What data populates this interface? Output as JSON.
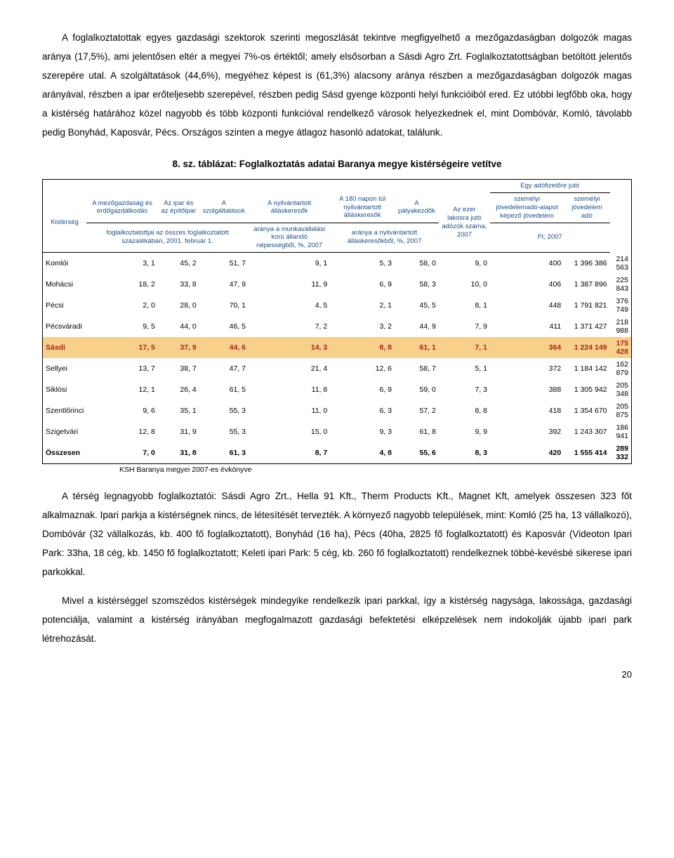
{
  "para1": "A foglalkoztatottak egyes gazdasági szektorok szerinti megoszlását tekintve megfigyelhető a mezőgazdaságban dolgozók magas aránya (17,5%), ami jelentősen eltér a megyei 7%-os értéktől; amely elsősorban a Sásdi Agro Zrt. Foglalkoztatottságban betöltött jelentős szerepére utal. A szolgáltatások (44,6%), megyéhez képest is (61,3%) alacsony aránya részben a mezőgazdaságban dolgozók magas arányával, részben a ipar erőteljesebb szerepével, részben pedig Sásd gyenge központi helyi funkcióiból ered. Ez utóbbi legfőbb oka, hogy a kistérség határához közel nagyobb és több központi funkcióval rendelkező városok helyezkednek el, mint Dombóvár, Komló, távolabb pedig Bonyhád, Kaposvár, Pécs. Országos szinten a megye átlagoz hasonló adatokat, találunk.",
  "caption": "8. sz. táblázat: Foglalkoztatás adatai Baranya megye kistérségeire vetítve",
  "table": {
    "headers": {
      "top_right": "Egy adófizetőre jutó",
      "row1": [
        "Kistérség",
        "A mezőgazdaság és erdőgazdálkodás",
        "Az ipar és az építőipar",
        "A szolgáltatások",
        "A nyilvántartott álláskeresők",
        "A 180 napon túl nyilvántartott álláskeresők",
        "A pályakezdők",
        "Az ezer lakosra jutó adózók száma, 2007",
        "személyi jövedelemadó-alapot képező jövedelem",
        "személyi jövedelem adó"
      ],
      "row2": [
        "foglalkoztatottjai az összes foglalkoztatott százalékában, 2001. február 1.",
        "aránya a munkavállalási korú állandó népességből, %, 2007",
        "aránya a nyilvántartott álláskeresőkből, %, 2007",
        "Ft, 2007"
      ]
    },
    "rows": [
      {
        "k": "Komlói",
        "v": [
          "3, 1",
          "45, 2",
          "51, 7",
          "9, 1",
          "5, 3",
          "58, 0",
          "9, 0",
          "400",
          "1 396 386",
          "214 563"
        ]
      },
      {
        "k": "Mohácsi",
        "v": [
          "18, 2",
          "33, 8",
          "47, 9",
          "11, 9",
          "6, 9",
          "58, 3",
          "10, 0",
          "406",
          "1 387 896",
          "225 843"
        ]
      },
      {
        "k": "Pécsi",
        "v": [
          "2, 0",
          "28, 0",
          "70, 1",
          "4, 5",
          "2, 1",
          "45, 5",
          "8, 1",
          "448",
          "1 791 821",
          "376 749"
        ]
      },
      {
        "k": "Pécsváradi",
        "v": [
          "9, 5",
          "44, 0",
          "46, 5",
          "7, 2",
          "3, 2",
          "44, 9",
          "7, 9",
          "411",
          "1 371 427",
          "218 988"
        ]
      },
      {
        "k": "Sásdi",
        "v": [
          "17, 5",
          "37, 9",
          "44, 6",
          "14, 3",
          "8, 8",
          "61, 1",
          "7, 1",
          "364",
          "1 224 149",
          "175 428"
        ],
        "hl": true
      },
      {
        "k": "Sellyei",
        "v": [
          "13, 7",
          "38, 7",
          "47, 7",
          "21, 4",
          "12, 6",
          "58, 7",
          "5, 1",
          "372",
          "1 184 142",
          "162 879"
        ]
      },
      {
        "k": "Siklósi",
        "v": [
          "12, 1",
          "26, 4",
          "61, 5",
          "11, 8",
          "6, 9",
          "59, 0",
          "7, 3",
          "388",
          "1 305 942",
          "205 348"
        ]
      },
      {
        "k": "Szentlőrinci",
        "v": [
          "9, 6",
          "35, 1",
          "55, 3",
          "11, 0",
          "6, 3",
          "57, 2",
          "8, 8",
          "418",
          "1 354 670",
          "205 875"
        ]
      },
      {
        "k": "Szigetvári",
        "v": [
          "12, 8",
          "31, 9",
          "55, 3",
          "15, 0",
          "9, 3",
          "61, 8",
          "9, 9",
          "392",
          "1 243 307",
          "186 941"
        ]
      },
      {
        "k": "Összesen",
        "v": [
          "7, 0",
          "31, 8",
          "61, 3",
          "8, 7",
          "4, 8",
          "55, 6",
          "8, 3",
          "420",
          "1 555 414",
          "289 332"
        ],
        "tot": true
      }
    ],
    "highlight_bg": "#f7d08a",
    "highlight_fg": "#b02020",
    "header_color": "#1a4f8a",
    "source": "KSH Baranya megyei 2007-es évkönyve"
  },
  "para2": "A térség legnagyobb foglalkoztatói: Sásdi Agro Zrt., Hella 91 Kft., Therm Products Kft., Magnet Kft, amelyek összesen 323 főt alkalmaznak. Ipari parkja a kistérségnek nincs, de létesítését tervezték. A környező nagyobb települések, mint: Komló (25 ha, 13 vállalkozó), Dombóvár (32 vállalkozás, kb. 400 fő foglalkoztatott), Bonyhád (16 ha), Pécs (40ha, 2825 fő foglalkoztatott) és Kaposvár (Videoton Ipari Park: 33ha, 18 cég, kb. 1450 fő foglalkoztatott; Keleti ipari Park: 5 cég, kb. 260 fő foglalkoztatott) rendelkeznek többé-kevésbé sikerese ipari parkokkal.",
  "para3": "Mivel a kistérséggel szomszédos kistérségek mindegyike rendelkezik ipari parkkal, így a kistérség nagysága, lakossága, gazdasági potenciálja, valamint a kistérség irányában megfogalmazott gazdasági befektetési elképzelések nem indokolják újabb ipari park létrehozását.",
  "pagenum": "20"
}
